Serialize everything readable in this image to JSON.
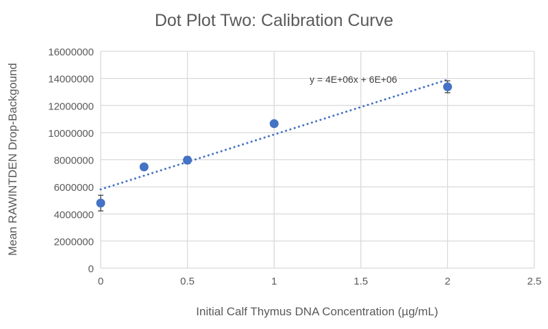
{
  "chart_data": {
    "type": "scatter",
    "title": "Dot Plot Two: Calibration Curve",
    "xlabel": "Initial Calf Thymus DNA Concentration (µg/mL)",
    "ylabel": "Mean RAWINTDEN Drop-Backgound",
    "xlim": [
      0,
      2.5
    ],
    "ylim": [
      0,
      16000000
    ],
    "xticks": [
      0,
      0.5,
      1,
      1.5,
      2,
      2.5
    ],
    "xtick_labels": [
      "0",
      "0.5",
      "1",
      "1.5",
      "2",
      "2.5"
    ],
    "yticks": [
      0,
      2000000,
      4000000,
      6000000,
      8000000,
      10000000,
      12000000,
      14000000,
      16000000
    ],
    "ytick_labels": [
      "0",
      "2000000",
      "4000000",
      "6000000",
      "8000000",
      "10000000",
      "12000000",
      "14000000",
      "16000000"
    ],
    "grid": true,
    "series": [
      {
        "name": "Mean RAWINTDEN",
        "color": "#4472C4",
        "x": [
          0,
          0.25,
          0.5,
          1,
          2
        ],
        "y": [
          4800000,
          7470000,
          7970000,
          10660000,
          13380000
        ],
        "error": [
          580000,
          100000,
          260000,
          100000,
          440000
        ]
      }
    ],
    "trendline": {
      "type": "linear",
      "slope": 4050000,
      "intercept": 5810000,
      "x_range": [
        0,
        2
      ],
      "color": "#4472C4",
      "equation_label": "y = 4E+06x + 6E+06"
    }
  }
}
